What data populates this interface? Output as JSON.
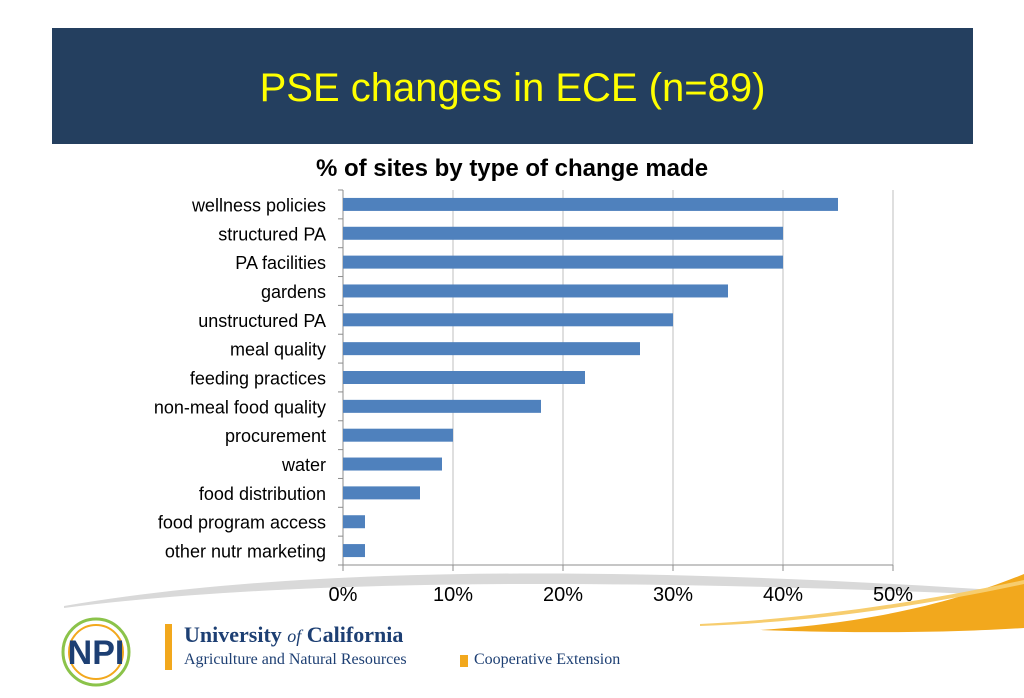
{
  "slide": {
    "title": "PSE changes in ECE (n=89)",
    "title_color": "#ffff00",
    "header_bg": "#243f5f"
  },
  "chart_data": {
    "type": "bar",
    "orientation": "horizontal",
    "title": "% of sites by type of change made",
    "categories": [
      "wellness policies",
      "structured PA",
      "PA facilities",
      "gardens",
      "unstructured PA",
      "meal quality",
      "feeding practices",
      "non-meal food quality",
      "procurement",
      "water",
      "food distribution",
      "food program access",
      "other nutr marketing"
    ],
    "values": [
      45,
      40,
      40,
      35,
      30,
      27,
      22,
      18,
      10,
      9,
      7,
      2,
      2
    ],
    "unit": "%",
    "xlim": [
      0,
      50
    ],
    "x_ticks": [
      0,
      10,
      20,
      30,
      40,
      50
    ],
    "x_tick_labels": [
      "0%",
      "10%",
      "20%",
      "30%",
      "40%",
      "50%"
    ],
    "xlabel": "",
    "ylabel": "",
    "grid": "vertical",
    "legend": "none",
    "bar_color": "#4f81bd"
  },
  "footer": {
    "org_name_parts": [
      "University ",
      "of",
      " California"
    ],
    "division": "Agriculture and Natural Resources",
    "program": "Cooperative Extension",
    "logo_letters": "NPI",
    "brand_navy": "#1d3f73",
    "brand_gold": "#f2a81d",
    "brand_green": "#8bc34a"
  }
}
